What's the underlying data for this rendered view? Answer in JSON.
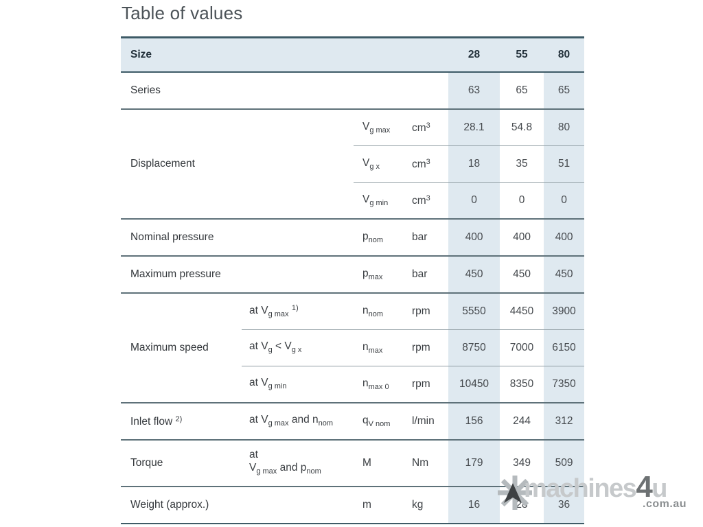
{
  "title": "Table of values",
  "colors": {
    "header_bg": "#dfe9f0",
    "column_shade": "#dfe9f0",
    "frame_border": "#3d5a66",
    "row_border": "#5e7179",
    "sub_border": "#8e9ba1",
    "watermark_light_gray": "#c6c9cb",
    "watermark_dark_gray": "#6d7173"
  },
  "watermark": {
    "brand_start": "machines",
    "brand_accent": "4",
    "brand_end": "u",
    "domain": ".com.au",
    "logo_icon": "asterisk-with-north-arrow"
  },
  "table": {
    "header": {
      "label": "Size",
      "sizes": [
        "28",
        "55",
        "80"
      ]
    },
    "rows": [
      {
        "type": "full",
        "label": "Series",
        "values": [
          "63",
          "65",
          "65"
        ]
      },
      {
        "type": "group_sym",
        "label": "Displacement",
        "sub": [
          {
            "sym": "V_{g max}",
            "unit": "cm^{3}",
            "values": [
              "28.1",
              "54.8",
              "80"
            ]
          },
          {
            "sym": "V_{g x}",
            "unit": "cm^{3}",
            "values": [
              "18",
              "35",
              "51"
            ]
          },
          {
            "sym": "V_{g min}",
            "unit": "cm^{3}",
            "values": [
              "0",
              "0",
              "0"
            ]
          }
        ]
      },
      {
        "type": "single",
        "label": "Nominal pressure",
        "cond": null,
        "sym": "p_{nom}",
        "unit": "bar",
        "values": [
          "400",
          "400",
          "400"
        ]
      },
      {
        "type": "single",
        "label": "Maximum pressure",
        "cond": null,
        "sym": "p_{max}",
        "unit": "bar",
        "values": [
          "450",
          "450",
          "450"
        ]
      },
      {
        "type": "group_cond",
        "label": "Maximum speed",
        "sub": [
          {
            "cond": "at V_{g max} ^{1)}",
            "sym": "n_{nom}",
            "unit": "rpm",
            "values": [
              "5550",
              "4450",
              "3900"
            ]
          },
          {
            "cond": "at V_{g} < V_{g x}",
            "sym": "n_{max}",
            "unit": "rpm",
            "values": [
              "8750",
              "7000",
              "6150"
            ]
          },
          {
            "cond": "at V_{g min}",
            "sym": "n_{max 0}",
            "unit": "rpm",
            "values": [
              "10450",
              "8350",
              "7350"
            ]
          }
        ]
      },
      {
        "type": "single",
        "label": "Inlet flow ^{2)}",
        "cond": "at V_{g max} and n_{nom}",
        "sym": "q_{V nom}",
        "unit": "l/min",
        "values": [
          "156",
          "244",
          "312"
        ]
      },
      {
        "type": "single",
        "label": "Torque",
        "cond": "at\nV_{g max} and p_{nom}",
        "sym": "M",
        "unit": "Nm",
        "values": [
          "179",
          "349",
          "509"
        ],
        "tall": true
      },
      {
        "type": "single",
        "label": "Weight (approx.)",
        "cond": null,
        "sym": "m",
        "unit": "kg",
        "values": [
          "16",
          "28",
          "36"
        ],
        "last": true
      }
    ]
  }
}
